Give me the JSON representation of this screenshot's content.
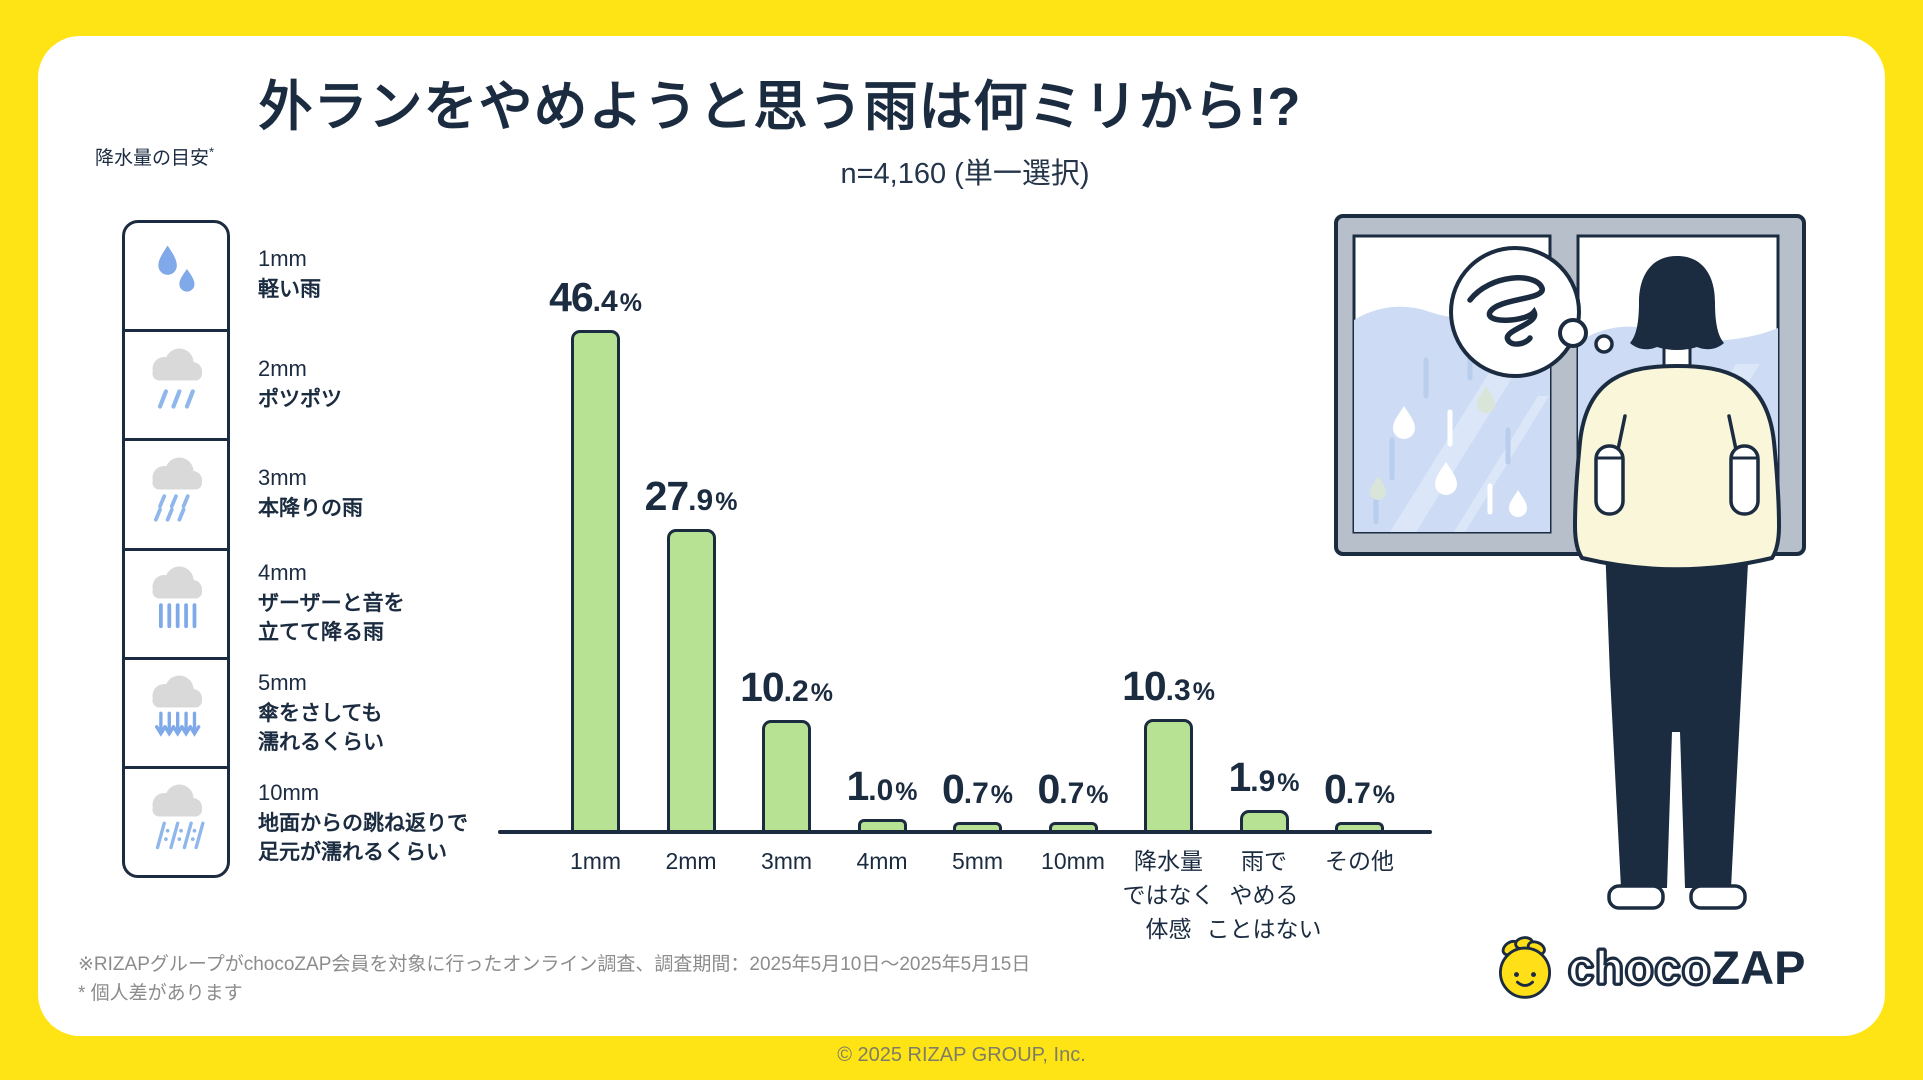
{
  "page": {
    "title": "外ランをやめようと思う雨は何ミリから!?",
    "subtitle": "n=4,160 (単一選択)",
    "footnote_line1": "※RIZAPグループがchocoZAP会員を対象に行ったオンライン調査、調査期間：2025年5月10日〜2025年5月15日",
    "footnote_line2": "* 個人差があります",
    "copyright": "© 2025 RIZAP GROUP, Inc."
  },
  "guide": {
    "header": "降水量の目安",
    "header_mark": "*",
    "items": [
      {
        "mm": "1mm",
        "desc": [
          "軽い雨"
        ],
        "icon": "rain-drops-icon"
      },
      {
        "mm": "2mm",
        "desc": [
          "ポツポツ"
        ],
        "icon": "cloud-light-drizzle-icon"
      },
      {
        "mm": "3mm",
        "desc": [
          "本降りの雨"
        ],
        "icon": "cloud-drizzle-icon"
      },
      {
        "mm": "4mm",
        "desc": [
          "ザーザーと音を",
          "立てて降る雨"
        ],
        "icon": "cloud-rain-icon"
      },
      {
        "mm": "5mm",
        "desc": [
          "傘をさしても",
          "濡れるくらい"
        ],
        "icon": "cloud-heavy-rain-icon"
      },
      {
        "mm": "10mm",
        "desc": [
          "地面からの跳ね返りで",
          "足元が濡れるくらい"
        ],
        "icon": "cloud-downpour-icon"
      }
    ]
  },
  "chart_data": {
    "type": "bar",
    "title": "外ランをやめようと思う雨は何ミリから!?",
    "subtitle": "n=4,160 (単一選択)",
    "categories": [
      [
        "1mm"
      ],
      [
        "2mm"
      ],
      [
        "3mm"
      ],
      [
        "4mm"
      ],
      [
        "5mm"
      ],
      [
        "10mm"
      ],
      [
        "降水量",
        "ではなく",
        "体感"
      ],
      [
        "雨で",
        "やめる",
        "ことはない"
      ],
      [
        "その他"
      ]
    ],
    "values": [
      46.4,
      27.9,
      10.2,
      1.0,
      0.7,
      0.7,
      10.3,
      1.9,
      0.7
    ],
    "unit": "%",
    "ylim": [
      0,
      50
    ],
    "grid": false,
    "legend": "none",
    "bar_fill": "#b7e293",
    "bar_border": "#1b2b40"
  },
  "logo": {
    "mascot": "chocozap-mascot-icon",
    "choco": "choco",
    "zap": "ZAP"
  },
  "colors": {
    "background_yellow": "#ffe415",
    "navy": "#1b2b40",
    "bar_green": "#b7e293",
    "gray_text": "#8c8c8c",
    "cloud_gray": "#d9d9d9",
    "rain_blue": "#7fa9e8"
  }
}
